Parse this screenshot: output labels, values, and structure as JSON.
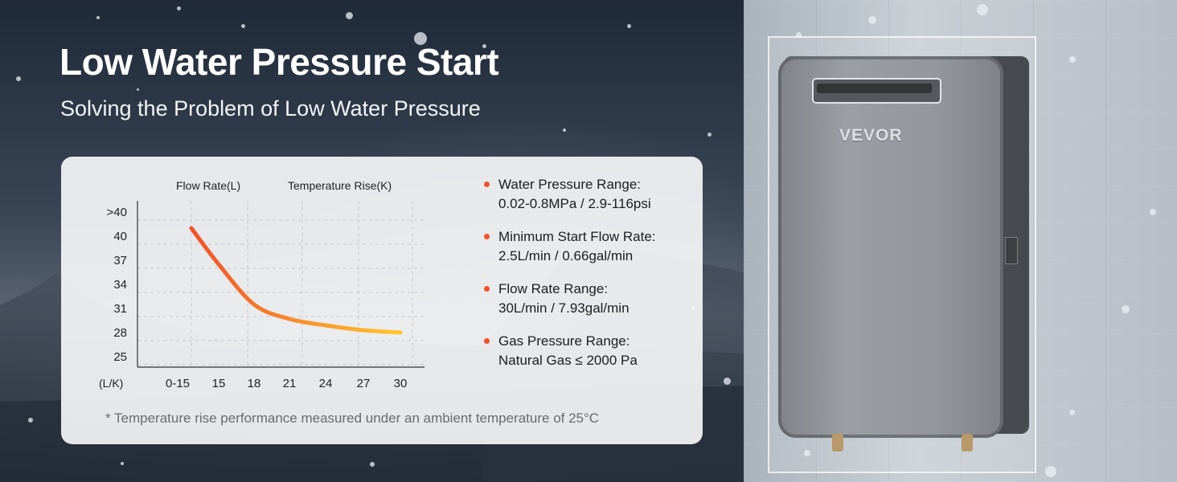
{
  "title": "Low Water Pressure Start",
  "subtitle": "Solving the Problem of Low Water Pressure",
  "chart_data": {
    "type": "line",
    "legend_labels": [
      "Flow Rate(L)",
      "Temperature Rise(K)"
    ],
    "ylabel": "(L/K)",
    "y_ticks": [
      ">40",
      "40",
      "37",
      "34",
      "31",
      "28",
      "25"
    ],
    "x_ticks": [
      "0-15",
      "15",
      "18",
      "21",
      "24",
      "27",
      "30"
    ],
    "series": [
      {
        "x": [
          "0-15",
          "15",
          "18",
          "21",
          "24",
          "27",
          "30"
        ],
        "y": [
          41,
          36.5,
          31.5,
          29.7,
          28.9,
          28.3,
          28
        ]
      }
    ],
    "grid": true,
    "colors": {
      "start": "#f0512b",
      "end": "#ffc72c"
    }
  },
  "specs": [
    {
      "label": "Water Pressure Range:",
      "value": "0.02-0.8MPa / 2.9-116psi"
    },
    {
      "label": "Minimum Start Flow Rate:",
      "value": "2.5L/min / 0.66gal/min"
    },
    {
      "label": "Flow Rate Range:",
      "value": "30L/min / 7.93gal/min"
    },
    {
      "label": "Gas Pressure Range:",
      "value": "Natural Gas ≤ 2000 Pa"
    }
  ],
  "footnote": "* Temperature rise performance measured under an ambient temperature of 25°C",
  "product": {
    "brand": "VEVOR"
  }
}
